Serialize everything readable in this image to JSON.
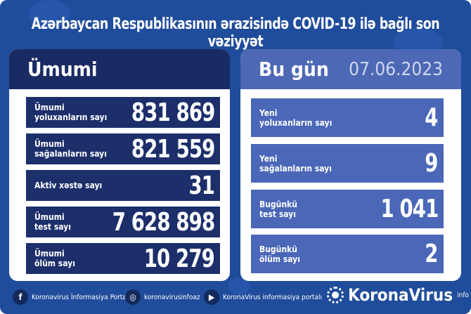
{
  "title": "Azərbaycan Respublikasının ərazisində COVID-19 ilə bağlı son vəziyyət",
  "total": {
    "heading": "Ümumi",
    "rows": [
      {
        "label": "Ümumi\nyoluxanların sayı",
        "value": "831 869"
      },
      {
        "label": "Ümumi\nsağalanların sayı",
        "value": "821 559"
      },
      {
        "label": "Aktiv xəstə sayı",
        "value": "31"
      },
      {
        "label": "Ümumi\ntest sayı",
        "value": "7 628 898"
      },
      {
        "label": "Ümumi\nölüm sayı",
        "value": "10 279"
      }
    ]
  },
  "today": {
    "heading": "Bu gün",
    "date": "07.06.2023",
    "rows": [
      {
        "label": "Yeni\nyoluxanların sayı",
        "value": "4"
      },
      {
        "label": "Yeni\nsağalanların sayı",
        "value": "9"
      },
      {
        "label": "Bugünkü\ntest sayı",
        "value": "1 041"
      },
      {
        "label": "Bugünkü\nölüm sayı",
        "value": "2"
      }
    ]
  },
  "footer": {
    "facebook": "Koronavirus İnformasiya Portalı",
    "instagram": "koronavirusinfoaz",
    "youtube": "KoronaVirus informasiya portalı",
    "brand": "KoronaVirus",
    "brand_sup": "info"
  },
  "colors": {
    "background": "#1f4c9b",
    "total_header": "#1a2b63",
    "total_rows": "#1c2f6b",
    "today_header": "#4d68b5",
    "today_rows": "#4a67b8"
  }
}
